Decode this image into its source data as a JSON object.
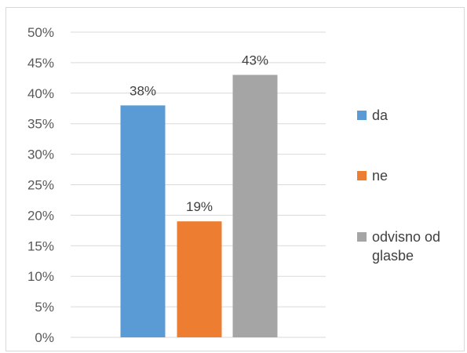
{
  "chart_data": {
    "type": "bar",
    "categories": [
      "da",
      "ne",
      "odvisno od glasbe"
    ],
    "values": [
      38,
      19,
      43
    ],
    "data_labels": [
      "38%",
      "19%",
      "43%"
    ],
    "colors": [
      "#5b9bd5",
      "#ed7d31",
      "#a5a5a5"
    ],
    "ylim": [
      0,
      50
    ],
    "yticks": [
      0,
      5,
      10,
      15,
      20,
      25,
      30,
      35,
      40,
      45,
      50
    ],
    "ytick_labels": [
      "0%",
      "5%",
      "10%",
      "15%",
      "20%",
      "25%",
      "30%",
      "35%",
      "40%",
      "45%",
      "50%"
    ],
    "grid": true,
    "legend_position": "right"
  },
  "legend": [
    {
      "label": "da",
      "color": "#5b9bd5"
    },
    {
      "label": "ne",
      "color": "#ed7d31"
    },
    {
      "label": "odvisno od glasbe",
      "color": "#a5a5a5"
    }
  ]
}
